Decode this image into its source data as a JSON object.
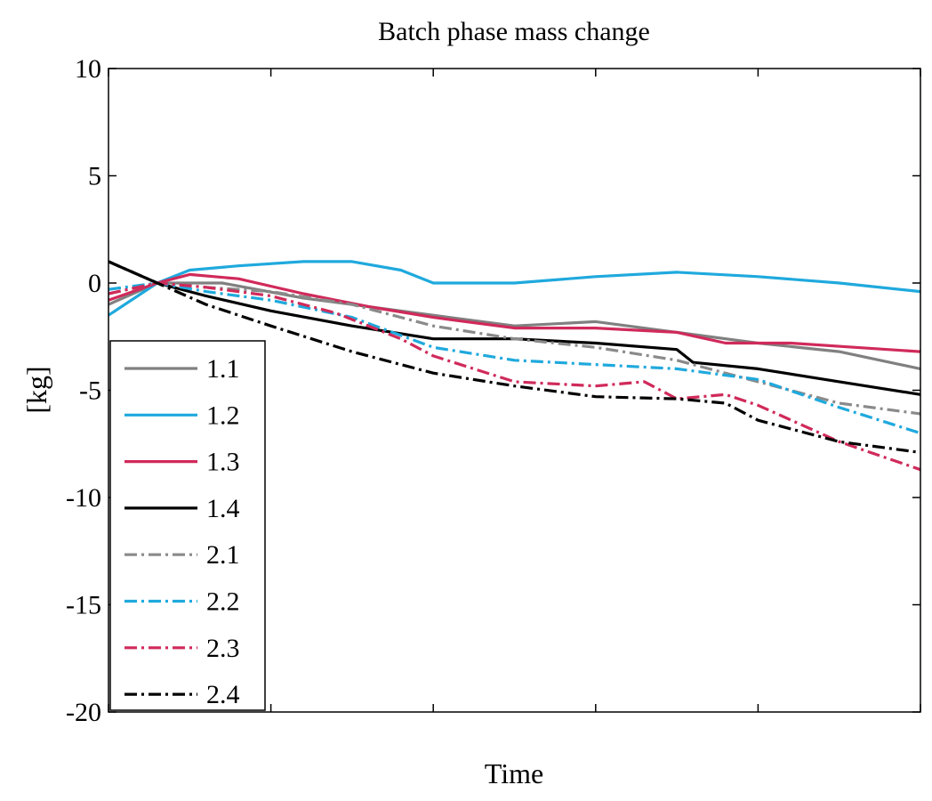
{
  "chart_data": {
    "type": "line",
    "title": "Batch phase mass change",
    "xlabel": "Time",
    "ylabel": "[kg]",
    "ylim": [
      -20,
      10
    ],
    "xlim": [
      0,
      50
    ],
    "yticks": [
      10,
      5,
      0,
      -5,
      -10,
      -15,
      -20
    ],
    "xticks": [
      0,
      10,
      20,
      30,
      40,
      50
    ],
    "grid": false,
    "legend_position": "bottom-left",
    "series": [
      {
        "name": "1.1",
        "color": "#808080",
        "style": "solid",
        "x": [
          0,
          3,
          7,
          12,
          20,
          25,
          30,
          35,
          40,
          45,
          50
        ],
        "y": [
          -1.0,
          0.0,
          0.0,
          -0.7,
          -1.5,
          -2.0,
          -1.8,
          -2.3,
          -2.8,
          -3.2,
          -4.0
        ]
      },
      {
        "name": "1.2",
        "color": "#1fa9dd",
        "style": "solid",
        "x": [
          0,
          3,
          5,
          8,
          12,
          15,
          18,
          20,
          25,
          30,
          35,
          40,
          45,
          50
        ],
        "y": [
          -1.5,
          0.0,
          0.6,
          0.8,
          1.0,
          1.0,
          0.6,
          0.0,
          0.0,
          0.3,
          0.5,
          0.3,
          0.0,
          -0.4
        ]
      },
      {
        "name": "1.3",
        "color": "#d02a5a",
        "style": "solid",
        "x": [
          0,
          3,
          5,
          8,
          12,
          16,
          20,
          25,
          30,
          35,
          38,
          42,
          46,
          50
        ],
        "y": [
          -0.8,
          0.0,
          0.4,
          0.2,
          -0.5,
          -1.1,
          -1.6,
          -2.1,
          -2.1,
          -2.3,
          -2.8,
          -2.8,
          -3.0,
          -3.2
        ]
      },
      {
        "name": "1.4",
        "color": "#000000",
        "style": "solid",
        "x": [
          0,
          3,
          6,
          10,
          15,
          20,
          25,
          30,
          35,
          36,
          40,
          45,
          50
        ],
        "y": [
          1.0,
          0.0,
          -0.6,
          -1.3,
          -2.0,
          -2.6,
          -2.6,
          -2.8,
          -3.1,
          -3.7,
          -4.0,
          -4.6,
          -5.2
        ]
      },
      {
        "name": "2.1",
        "color": "#8a8a8a",
        "style": "dashdot",
        "x": [
          0,
          3,
          6,
          10,
          15,
          20,
          25,
          30,
          35,
          40,
          45,
          50
        ],
        "y": [
          -0.5,
          0.0,
          -0.2,
          -0.4,
          -1.0,
          -2.0,
          -2.6,
          -3.0,
          -3.6,
          -4.6,
          -5.6,
          -6.1
        ]
      },
      {
        "name": "2.2",
        "color": "#1fa9dd",
        "style": "dashdot",
        "x": [
          0,
          3,
          6,
          10,
          15,
          20,
          25,
          30,
          35,
          40,
          45,
          50
        ],
        "y": [
          -0.3,
          0.0,
          -0.4,
          -0.8,
          -1.6,
          -3.0,
          -3.6,
          -3.8,
          -4.0,
          -4.5,
          -5.8,
          -7.0
        ]
      },
      {
        "name": "2.3",
        "color": "#d02a5a",
        "style": "dashdot",
        "x": [
          0,
          3,
          6,
          10,
          14,
          18,
          20,
          25,
          30,
          33,
          35,
          38,
          40,
          45,
          50
        ],
        "y": [
          -0.5,
          0.0,
          -0.2,
          -0.6,
          -1.4,
          -2.6,
          -3.4,
          -4.6,
          -4.8,
          -4.6,
          -5.4,
          -5.2,
          -5.7,
          -7.4,
          -8.7
        ]
      },
      {
        "name": "2.4",
        "color": "#000000",
        "style": "dashdot",
        "x": [
          0,
          3,
          6,
          10,
          15,
          20,
          25,
          30,
          35,
          38,
          40,
          45,
          50
        ],
        "y": [
          1.0,
          0.0,
          -1.0,
          -2.0,
          -3.2,
          -4.2,
          -4.8,
          -5.3,
          -5.4,
          -5.6,
          -6.4,
          -7.4,
          -7.9
        ]
      }
    ]
  }
}
